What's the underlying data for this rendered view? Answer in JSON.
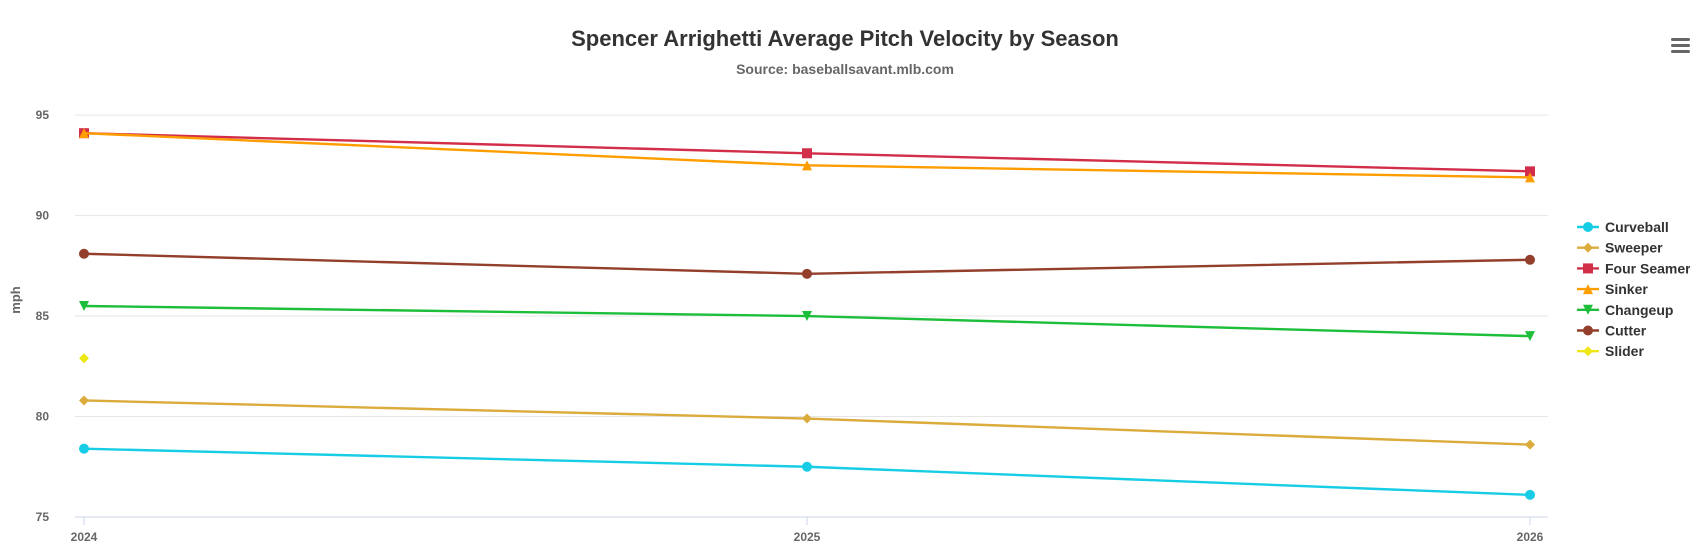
{
  "chart_data": {
    "type": "line",
    "title": "Spencer Arrighetti Average Pitch Velocity by Season",
    "subtitle": "Source: baseballsavant.mlb.com",
    "xlabel": "",
    "ylabel": "mph",
    "categories": [
      "2024",
      "2025",
      "2026"
    ],
    "ylim": [
      75,
      96
    ],
    "yticks": [
      75,
      80,
      85,
      90,
      95
    ],
    "grid": true,
    "legend_position": "right",
    "series": [
      {
        "name": "Curveball",
        "color": "#17cde5",
        "marker": "circle",
        "values": [
          78.4,
          77.5,
          76.1
        ]
      },
      {
        "name": "Sweeper",
        "color": "#dbab3b",
        "marker": "diamond",
        "values": [
          80.8,
          79.9,
          78.6
        ]
      },
      {
        "name": "Four Seamer",
        "color": "#d22d49",
        "marker": "square",
        "values": [
          94.1,
          93.1,
          92.2
        ]
      },
      {
        "name": "Sinker",
        "color": "#fe9d00",
        "marker": "triangle",
        "values": [
          94.1,
          92.5,
          91.9
        ]
      },
      {
        "name": "Changeup",
        "color": "#1dbe3a",
        "marker": "triangle-down",
        "values": [
          85.5,
          85.0,
          84.0
        ]
      },
      {
        "name": "Cutter",
        "color": "#933f2c",
        "marker": "circle",
        "values": [
          88.1,
          87.1,
          87.8
        ]
      },
      {
        "name": "Slider",
        "color": "#eee716",
        "marker": "diamond",
        "values": [
          82.9,
          null,
          null
        ]
      }
    ]
  },
  "menu_icon": "hamburger-menu-icon"
}
